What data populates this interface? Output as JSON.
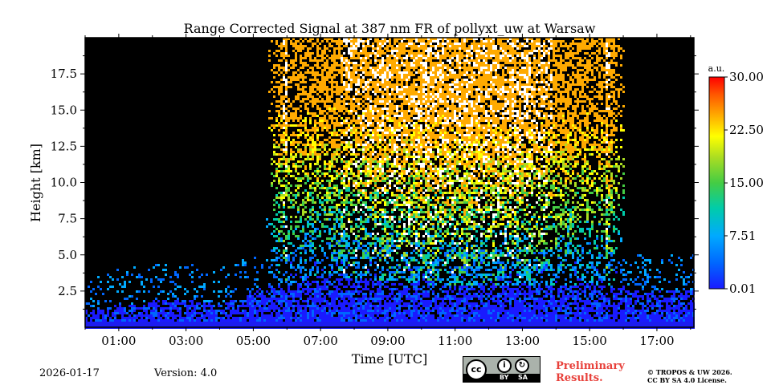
{
  "chart_data": {
    "type": "heatmap",
    "title": "Range Corrected Signal at 387 nm FR of pollyxt_uw at Warsaw",
    "xlabel": "Time [UTC]",
    "ylabel": "Height [km]",
    "x_ticks": [
      "01:00",
      "03:00",
      "05:00",
      "07:00",
      "09:00",
      "11:00",
      "13:00",
      "15:00",
      "17:00"
    ],
    "x_tick_hours": [
      1,
      3,
      5,
      7,
      9,
      11,
      13,
      15,
      17
    ],
    "xlim_hours": [
      0,
      18.1
    ],
    "y_ticks": [
      "2.5",
      "5.0",
      "7.5",
      "10.0",
      "12.5",
      "15.0",
      "17.5"
    ],
    "y_tick_values": [
      2.5,
      5.0,
      7.5,
      10.0,
      12.5,
      15.0,
      17.5
    ],
    "ylim": [
      0,
      20
    ],
    "colorbar": {
      "unit": "a.u.",
      "range": [
        0.01,
        30.0
      ],
      "ticks": [
        "0.01",
        "7.51",
        "15.00",
        "22.50",
        "30.00"
      ],
      "tick_values": [
        0.01,
        7.51,
        15.0,
        22.5,
        30.0
      ],
      "colormap": [
        "#1a1aff",
        "#0066ff",
        "#00aaff",
        "#00ccaa",
        "#44cc44",
        "#aadd22",
        "#ffff00",
        "#ffaa00",
        "#ff5500",
        "#ff0000"
      ]
    },
    "signal_profile": {
      "description_hours": [
        0,
        2,
        3,
        4,
        5,
        6,
        7,
        9,
        11,
        13,
        15,
        15.5,
        16.5,
        18
      ],
      "boundary_layer_top_km": [
        1.2,
        1.8,
        2.0,
        1.5,
        2.6,
        3.0,
        3.6,
        3.2,
        2.8,
        2.8,
        3.0,
        2.8,
        2.5,
        2.5
      ],
      "daylight_noise_start_hour": 6.0,
      "daylight_noise_end_hour": 15.5
    }
  },
  "footer": {
    "date": "2026-01-17",
    "version": "Version: 4.0",
    "preliminary_line1": "Preliminary",
    "preliminary_line2": "Results.",
    "copyright_line1": "© TROPOS & UW 2026.",
    "copyright_line2": "CC BY SA 4.0 License.",
    "license_badge": {
      "cc": "cc",
      "by_label": "BY",
      "sa_label": "SA",
      "by_icon": "person-icon",
      "sa_icon": "share-alike-icon"
    }
  }
}
